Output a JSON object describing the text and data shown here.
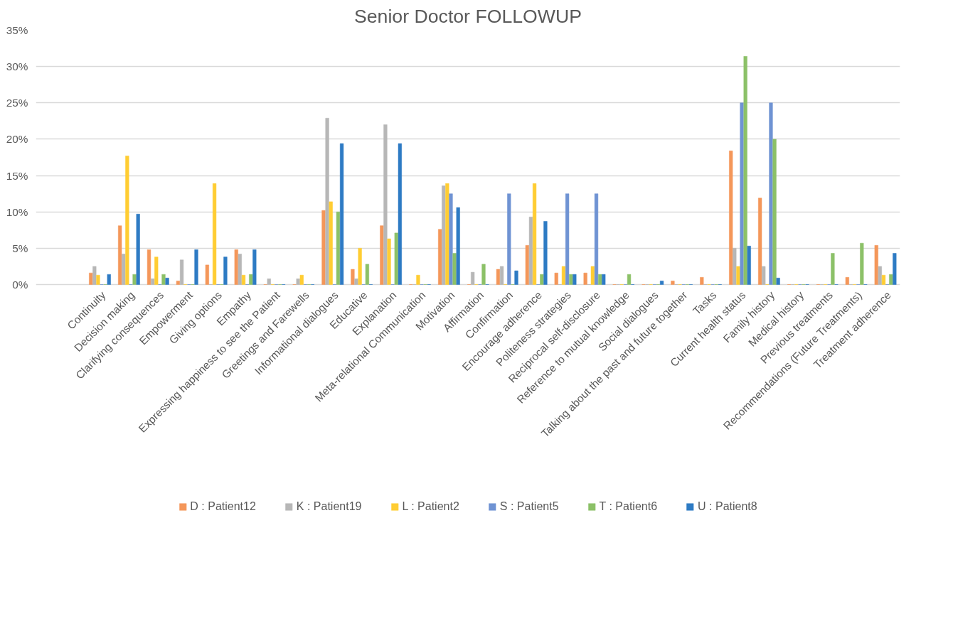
{
  "chart_data": {
    "type": "bar",
    "title": "Senior Doctor FOLLOWUP",
    "categories": [
      "Continuity",
      "Decision making",
      "Clarifying consequences",
      "Empowerment",
      "Giving options",
      "Empathy",
      "Expressing happiness to see the Patient",
      "Greetings and Farewells",
      "Informational dialogues",
      "Educative",
      "Explanation",
      "Meta-relational Communication",
      "Motivation",
      "Affirmation",
      "Confirmation",
      "Encourage adherence",
      "Politeness strategies",
      "Reciprocal self-disclosure",
      "Reference to mutual knowledge",
      "Social dialogues",
      "Talking about the past and future together",
      "Tasks",
      "Current health status",
      "Family history",
      "Medical history",
      "Previous treatments",
      "Recommendations (Future Treatments)",
      "Treatment adherence"
    ],
    "series": [
      {
        "name": "D : Patient12",
        "color": "#f4975a",
        "values": [
          1.6,
          8.1,
          4.8,
          0.5,
          2.7,
          4.8,
          0,
          0,
          10.2,
          2.1,
          8.1,
          0,
          7.6,
          0,
          2.1,
          5.4,
          1.6,
          1.6,
          0,
          0,
          0.5,
          1.0,
          18.4,
          11.9,
          0,
          0,
          1.0,
          5.4
        ]
      },
      {
        "name": "K : Patient19",
        "color": "#b7b7b7",
        "values": [
          2.5,
          4.2,
          0.8,
          3.4,
          0,
          4.2,
          0.8,
          0.8,
          22.9,
          0.8,
          22.0,
          0,
          13.6,
          1.7,
          2.5,
          9.3,
          0,
          0,
          0,
          0,
          0,
          0,
          5.0,
          2.5,
          0,
          0,
          0,
          2.5
        ]
      },
      {
        "name": "L : Patient2",
        "color": "#ffcd33",
        "values": [
          1.3,
          17.7,
          3.8,
          0,
          13.9,
          1.3,
          0,
          1.3,
          11.4,
          5.0,
          6.3,
          1.3,
          13.9,
          0,
          0,
          13.9,
          2.5,
          2.5,
          0,
          0,
          0,
          0,
          2.5,
          0,
          0,
          0,
          0,
          1.3
        ]
      },
      {
        "name": "S : Patient5",
        "color": "#6f93d3",
        "values": [
          0,
          0,
          0,
          0,
          0,
          0,
          0,
          0,
          0,
          0,
          0,
          0,
          12.5,
          0,
          12.5,
          0,
          12.5,
          12.5,
          0,
          0,
          0,
          0,
          25.0,
          25.0,
          0,
          0,
          0,
          0
        ]
      },
      {
        "name": "T : Patient6",
        "color": "#8cc168",
        "values": [
          0,
          1.4,
          1.4,
          0,
          0,
          1.4,
          0,
          0,
          10.0,
          2.8,
          7.1,
          0,
          4.3,
          2.8,
          0,
          1.4,
          1.4,
          1.4,
          1.4,
          0,
          0,
          0,
          31.4,
          20.0,
          0,
          4.3,
          5.7,
          1.4
        ]
      },
      {
        "name": "U : Patient8",
        "color": "#2e7bc4",
        "values": [
          1.4,
          9.7,
          0.9,
          4.8,
          3.8,
          4.8,
          0,
          0,
          19.4,
          0,
          19.4,
          0,
          10.6,
          0,
          1.9,
          8.7,
          1.4,
          1.4,
          0,
          0.5,
          0,
          0,
          5.3,
          0.9,
          0,
          0,
          0,
          4.3
        ]
      }
    ],
    "ylim": [
      0,
      35
    ],
    "yticks": [
      {
        "value": 0,
        "label": "0%"
      },
      {
        "value": 5,
        "label": "5%"
      },
      {
        "value": 10,
        "label": "10%"
      },
      {
        "value": 15,
        "label": "15%"
      },
      {
        "value": 20,
        "label": "20%"
      },
      {
        "value": 25,
        "label": "25%"
      },
      {
        "value": 30,
        "label": "30%"
      },
      {
        "value": 35,
        "label": "35%"
      }
    ],
    "grid": "y",
    "legend": "bottom"
  }
}
